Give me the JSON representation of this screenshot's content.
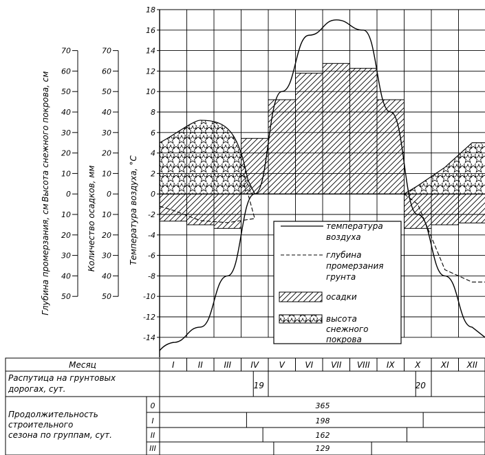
{
  "axes": {
    "snow_depth_label": "Высота снежного покрова, см",
    "frost_depth_label": "Глубина промерзания, см",
    "precip_label": "Количество осадков, мм",
    "temp_label": "Температура воздуха, °C",
    "upper_ticks": [
      "70",
      "60",
      "50",
      "40",
      "30",
      "20",
      "10",
      "0"
    ],
    "lower_ticks": [
      "10",
      "20",
      "30",
      "40",
      "50"
    ],
    "temp_ticks": [
      "18",
      "16",
      "14",
      "12",
      "10",
      "8",
      "6",
      "4",
      "2",
      "0",
      "-2",
      "-4",
      "-6",
      "-8",
      "-10",
      "-12",
      "-14"
    ]
  },
  "legend": {
    "temp": "температура воздуха",
    "frost": "глубина промерзания грунта",
    "precip": "осадки",
    "snow": "высота снежного покрова"
  },
  "table": {
    "month_header": "Месяц",
    "months": [
      "I",
      "II",
      "III",
      "IV",
      "V",
      "VI",
      "VII",
      "VIII",
      "IX",
      "X",
      "XI",
      "XII"
    ],
    "rasputitsa_label": "Распутица на грунтовых дорогах, сут.",
    "rasputitsa_spring": "19",
    "rasputitsa_autumn": "20",
    "season_label": "Продолжительность строительного сезона по группам, сут.",
    "groups": [
      "0",
      "I",
      "II",
      "III"
    ],
    "group_values": [
      "365",
      "198",
      "162",
      "129"
    ]
  },
  "chart_data": {
    "type": "climate-diagram",
    "x": [
      "I",
      "II",
      "III",
      "IV",
      "V",
      "VI",
      "VII",
      "VIII",
      "IX",
      "X",
      "XI",
      "XII"
    ],
    "ylim_temperature": [
      -15,
      18
    ],
    "temperature_c": [
      -14.5,
      -13,
      -8,
      0,
      10,
      15.5,
      17,
      16,
      8,
      -2,
      -8,
      -13
    ],
    "precipitation_mm": [
      15,
      17,
      19,
      23,
      39,
      50,
      54,
      52,
      39,
      19,
      17,
      16
    ],
    "snow_depth_cm": [
      25,
      36,
      34,
      2,
      0,
      0,
      0,
      0,
      0,
      4,
      13,
      25
    ],
    "frost_depth_cm": [
      8,
      13,
      14,
      12,
      0,
      0,
      0,
      0,
      0,
      5,
      37,
      43
    ]
  }
}
